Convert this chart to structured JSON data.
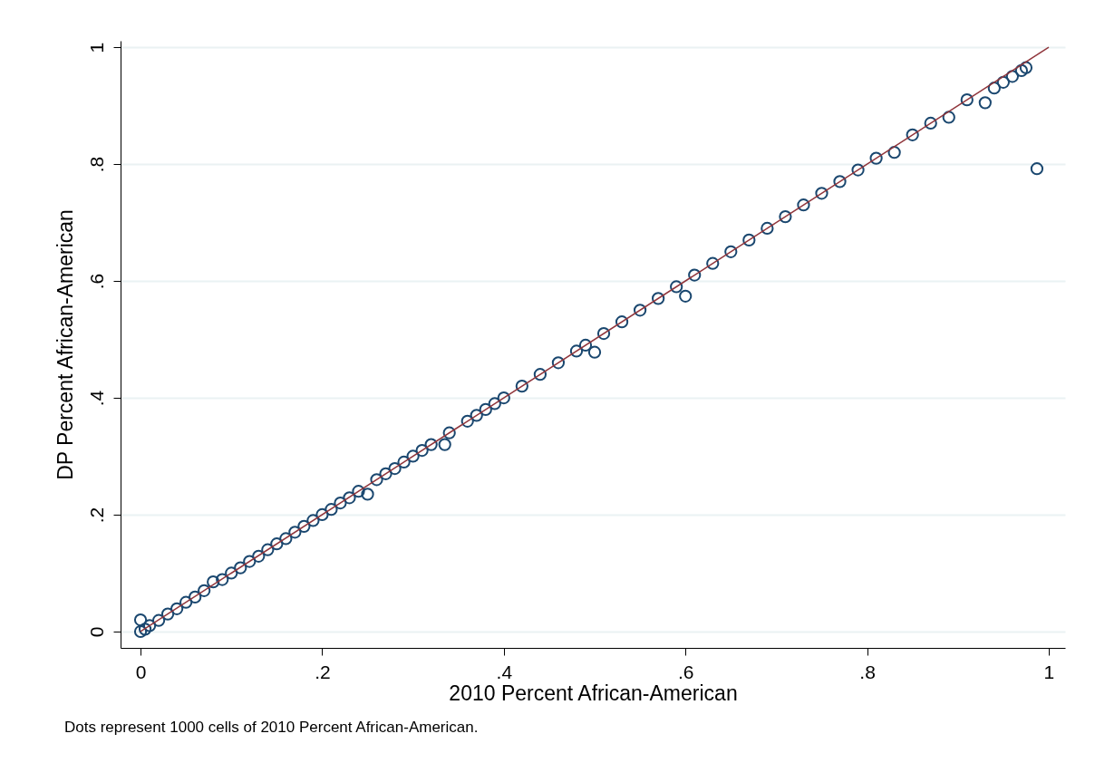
{
  "chart_data": {
    "type": "scatter",
    "xlabel": "2010 Percent African-American",
    "ylabel": "DP Percent African-American",
    "annotations": [
      "Dots represent 1000 cells of 2010 Percent African-American."
    ],
    "xlim": [
      -0.022,
      1.018
    ],
    "ylim": [
      -0.028,
      1.011
    ],
    "xticks": [
      0,
      {
        "value": 0.2,
        "label": ".2"
      },
      {
        "value": 0.4,
        "label": ".4"
      },
      {
        "value": 0.6,
        "label": ".6"
      },
      {
        "value": 0.8,
        "label": ".8"
      },
      1
    ],
    "yticks": [
      0,
      {
        "value": 0.2,
        "label": ".2"
      },
      {
        "value": 0.4,
        "label": ".4"
      },
      {
        "value": 0.6,
        "label": ".6"
      },
      {
        "value": 0.8,
        "label": ".8"
      },
      1
    ],
    "grid": "y",
    "marker": "circle",
    "series": [
      {
        "color": "#1a476f",
        "x": [
          0,
          0,
          0.005,
          0.01,
          0.02,
          0.03,
          0.04,
          0.05,
          0.06,
          0.07,
          0.08,
          0.09,
          0.1,
          0.11,
          0.12,
          0.13,
          0.14,
          0.15,
          0.16,
          0.17,
          0.18,
          0.19,
          0.2,
          0.21,
          0.22,
          0.23,
          0.24,
          0.25,
          0.26,
          0.27,
          0.28,
          0.29,
          0.3,
          0.31,
          0.32,
          0.335,
          0.34,
          0.36,
          0.37,
          0.38,
          0.39,
          0.4,
          0.42,
          0.44,
          0.46,
          0.48,
          0.49,
          0.5,
          0.51,
          0.53,
          0.55,
          0.57,
          0.59,
          0.6,
          0.61,
          0.63,
          0.65,
          0.67,
          0.69,
          0.71,
          0.73,
          0.75,
          0.77,
          0.79,
          0.81,
          0.83,
          0.85,
          0.87,
          0.89,
          0.91,
          0.93,
          0.94,
          0.95,
          0.96,
          0.97,
          0.975,
          0.987
        ],
        "values": [
          0,
          0.02,
          0.004,
          0.01,
          0.019,
          0.03,
          0.039,
          0.05,
          0.059,
          0.07,
          0.085,
          0.089,
          0.1,
          0.109,
          0.12,
          0.129,
          0.14,
          0.15,
          0.159,
          0.17,
          0.18,
          0.19,
          0.2,
          0.209,
          0.22,
          0.229,
          0.24,
          0.235,
          0.26,
          0.27,
          0.279,
          0.29,
          0.3,
          0.31,
          0.32,
          0.32,
          0.34,
          0.36,
          0.37,
          0.38,
          0.39,
          0.4,
          0.42,
          0.44,
          0.46,
          0.48,
          0.49,
          0.478,
          0.51,
          0.53,
          0.55,
          0.57,
          0.59,
          0.574,
          0.61,
          0.63,
          0.65,
          0.67,
          0.69,
          0.71,
          0.73,
          0.75,
          0.77,
          0.79,
          0.81,
          0.82,
          0.85,
          0.87,
          0.88,
          0.91,
          0.905,
          0.93,
          0.94,
          0.95,
          0.96,
          0.965,
          0.792
        ]
      },
      {
        "type": "line",
        "color": "#90353b",
        "marker": "none",
        "line_style": "solid",
        "x": [
          0,
          1
        ],
        "values": [
          0,
          1
        ]
      }
    ]
  }
}
